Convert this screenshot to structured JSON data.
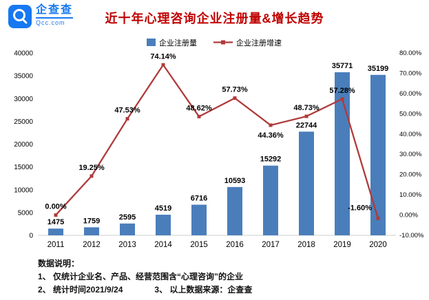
{
  "header": {
    "brand": "企查查",
    "brand_sub": "Qcc.com",
    "title": "近十年心理咨询企业注册量&增长趋势"
  },
  "chart_data": {
    "type": "combo",
    "title": "近十年心理咨询企业注册量&增长趋势",
    "categories": [
      "2011",
      "2012",
      "2013",
      "2014",
      "2015",
      "2016",
      "2017",
      "2018",
      "2019",
      "2020"
    ],
    "series": [
      {
        "name": "企业注册量",
        "type": "bar",
        "axis": "left",
        "values": [
          1475,
          1759,
          2595,
          4519,
          6716,
          10593,
          15292,
          22744,
          35771,
          35199
        ]
      },
      {
        "name": "企业注册增速",
        "type": "line",
        "axis": "right",
        "values": [
          0.0,
          19.25,
          47.53,
          74.14,
          48.62,
          57.73,
          44.36,
          48.73,
          57.28,
          -1.6
        ],
        "labels": [
          "0.00%",
          "19.25%",
          "47.53%",
          "74.14%",
          "48.62%",
          "57.73%",
          "44.36%",
          "48.73%",
          "57.28%",
          "-1.60%"
        ]
      }
    ],
    "left_axis": {
      "min": 0,
      "max": 40000,
      "step": 5000
    },
    "right_axis": {
      "min": -10,
      "max": 80,
      "step": 10,
      "format": "percent2"
    },
    "legend_position": "top",
    "grid": false,
    "colors": {
      "bar": "#4A7EBB",
      "line": "#B03A3A"
    },
    "label_overrides": {
      "6": {
        "dy": 18
      },
      "9": {
        "dx": -9,
        "dy": -12,
        "anchor": "end"
      }
    }
  },
  "footer": {
    "heading": "数据说明：",
    "note1": "1、 仅统计企业名、产品、经营范围含“心理咨询”的企业",
    "note2": "2、 统计时间2021/9/24",
    "note3": "3、 以上数据来源：企查查"
  }
}
